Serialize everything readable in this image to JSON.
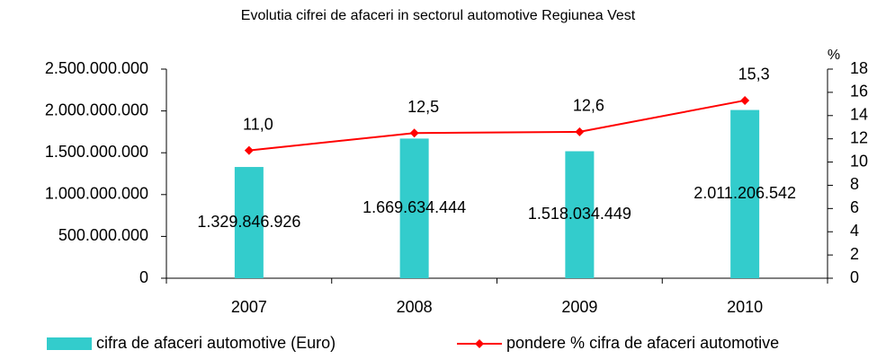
{
  "chart_data": {
    "type": "bar",
    "title": "Evolutia cifrei de afaceri in sectorul automotive Regiunea Vest",
    "categories": [
      "2007",
      "2008",
      "2009",
      "2010"
    ],
    "series": [
      {
        "name": "cifra de afaceri automotive (Euro)",
        "type": "bar",
        "color": "#33cccc",
        "values": [
          1329846926,
          1669634444,
          1518034449,
          2011206542
        ],
        "value_labels": [
          "1.329.846.926",
          "1.669.634.444",
          "1.518.034.449",
          "2.011.206.542"
        ]
      },
      {
        "name": "pondere % cifra de afaceri automotive",
        "type": "line",
        "axis": "y2",
        "color": "#ff0000",
        "values": [
          11.0,
          12.5,
          12.6,
          15.3
        ],
        "value_labels": [
          "11,0",
          "12,5",
          "12,6",
          "15,3"
        ]
      }
    ],
    "ylim": [
      0,
      2500000000
    ],
    "yticks": [
      0,
      {
        "value": 500000000,
        "label": "500.000.000"
      },
      {
        "value": 1000000000,
        "label": "1.000.000.000"
      },
      {
        "value": 1500000000,
        "label": "1.500.000.000"
      },
      {
        "value": 2000000000,
        "label": "2.000.000.000"
      },
      {
        "value": 2500000000,
        "label": "2.500.000.000"
      }
    ],
    "y2lim": [
      0,
      18
    ],
    "y2ticks": [
      0,
      2,
      4,
      6,
      8,
      10,
      12,
      14,
      16,
      18
    ],
    "y2label": "%",
    "legend": "bottom"
  }
}
